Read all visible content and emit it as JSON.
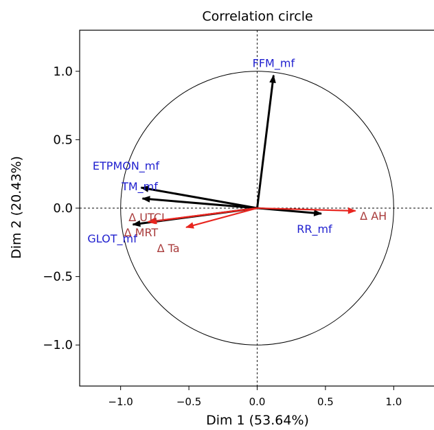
{
  "chart_data": {
    "type": "scatter",
    "title": "Correlation circle",
    "xlabel": "Dim 1 (53.64%)",
    "ylabel": "Dim 2 (20.43%)",
    "xlim": [
      -1.3,
      1.3
    ],
    "ylim": [
      -1.3,
      1.3
    ],
    "xticks": [
      {
        "value": -1.0,
        "label": "−1.0"
      },
      {
        "value": -0.5,
        "label": "−0.5"
      },
      {
        "value": 0.0,
        "label": "0.0"
      },
      {
        "value": 0.5,
        "label": "0.5"
      },
      {
        "value": 1.0,
        "label": "1.0"
      }
    ],
    "yticks": [
      {
        "value": -1.0,
        "label": "−1.0"
      },
      {
        "value": -0.5,
        "label": "−0.5"
      },
      {
        "value": 0.0,
        "label": "0.0"
      },
      {
        "value": 0.5,
        "label": "0.5"
      },
      {
        "value": 1.0,
        "label": "1.0"
      }
    ],
    "unit_circle": true,
    "reference_lines": "dashed at x=0 and y=0",
    "groups": [
      {
        "arrow_color": "#000000",
        "label_color": "#1f1fcf",
        "variables": [
          {
            "name": "FFM_mf",
            "x": 0.12,
            "y": 0.97
          },
          {
            "name": "ETPMON_mf",
            "x": -0.85,
            "y": 0.15
          },
          {
            "name": "TM_mf",
            "x": -0.84,
            "y": 0.07
          },
          {
            "name": "GLOT_mf",
            "x": -0.91,
            "y": -0.12
          },
          {
            "name": "RR_mf",
            "x": 0.47,
            "y": -0.04
          }
        ]
      },
      {
        "arrow_color": "#e8251f",
        "label_color": "#a83a3a",
        "variables": [
          {
            "name": "Δ UTCI",
            "x": -0.8,
            "y": -0.1
          },
          {
            "name": "Δ MRT",
            "x": -0.79,
            "y": -0.1
          },
          {
            "name": "Δ Ta",
            "x": -0.52,
            "y": -0.14
          },
          {
            "name": "Δ AH",
            "x": 0.72,
            "y": -0.02
          }
        ]
      }
    ],
    "label_offsets_note": ""
  }
}
